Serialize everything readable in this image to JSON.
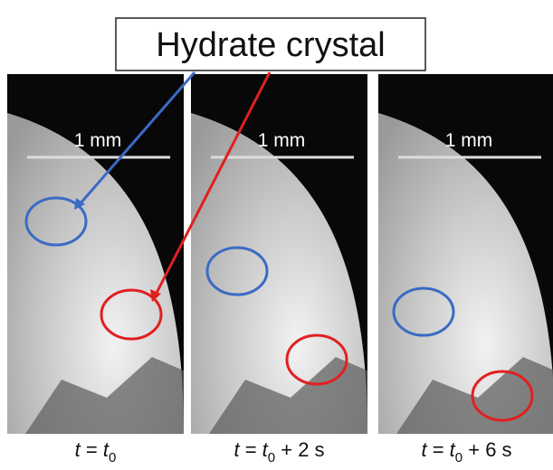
{
  "label": "Hydrate crystal",
  "panels": [
    {
      "scale_label": "1 mm",
      "caption": {
        "var": "t",
        "eq": " = ",
        "base": "t",
        "sub": "0"
      }
    },
    {
      "scale_label": "1 mm",
      "caption": {
        "var": "t",
        "eq": " = ",
        "base": "t",
        "sub": "0",
        "rest": " + 2 s"
      }
    },
    {
      "scale_label": "1 mm",
      "caption": {
        "var": "t",
        "eq": " = ",
        "base": "t",
        "sub": "0",
        "rest": " + 6 s"
      }
    }
  ]
}
